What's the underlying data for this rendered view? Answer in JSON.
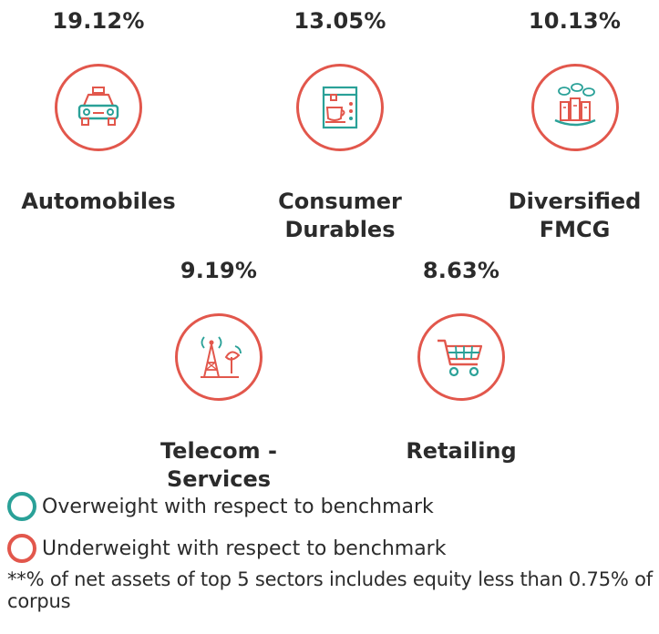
{
  "sectors": [
    {
      "percent": "19.12%",
      "name_lines": [
        "Automobiles"
      ],
      "icon": "taxi-car-icon"
    },
    {
      "percent": "13.05%",
      "name_lines": [
        "Consumer",
        "Durables"
      ],
      "icon": "coffee-machine-icon"
    },
    {
      "percent": "10.13%",
      "name_lines": [
        "Diversified",
        "FMCG"
      ],
      "icon": "consumer-goods-icon"
    },
    {
      "percent": "9.19%",
      "name_lines": [
        "Telecom -",
        "Services"
      ],
      "icon": "telecom-tower-icon"
    },
    {
      "percent": "8.63%",
      "name_lines": [
        "Retailing"
      ],
      "icon": "shopping-cart-icon"
    }
  ],
  "legend": {
    "overweight": "Overweight with respect to benchmark",
    "underweight": "Underweight with respect to benchmark"
  },
  "footnote": "**% of net assets of top 5 sectors includes equity less than 0.75% of corpus",
  "colors": {
    "overweight_ring": "#2aa198",
    "underweight_ring": "#e2574c",
    "icon_green": "#2aa198",
    "icon_red": "#e2574c"
  }
}
